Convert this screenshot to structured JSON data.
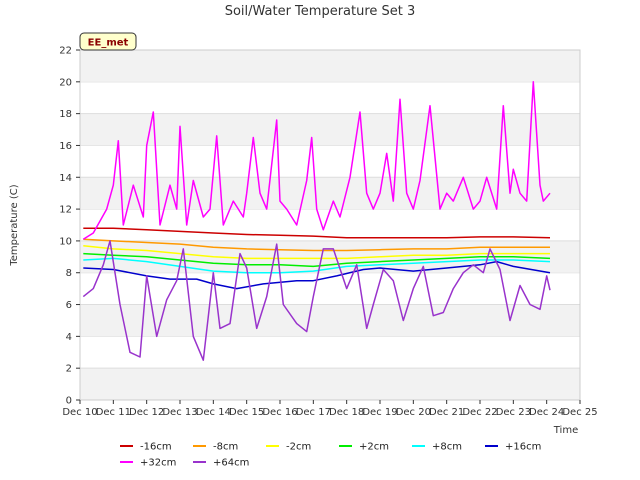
{
  "chart_data": {
    "type": "line",
    "title": "Soil/Water Temperature Set 3",
    "xlabel": "Time",
    "ylabel": "Temperature (C)",
    "ylim": [
      0,
      22
    ],
    "yticks": [
      0,
      2,
      4,
      6,
      8,
      10,
      12,
      14,
      16,
      18,
      20,
      22
    ],
    "xlim": [
      10,
      25
    ],
    "xticks": [
      10,
      11,
      12,
      13,
      14,
      15,
      16,
      17,
      18,
      19,
      20,
      21,
      22,
      23,
      24,
      25
    ],
    "xtick_labels": [
      "Dec 10",
      "Dec 11",
      "Dec 12",
      "Dec 13",
      "Dec 14",
      "Dec 15",
      "Dec 16",
      "Dec 17",
      "Dec 18",
      "Dec 19",
      "Dec 20",
      "Dec 21",
      "Dec 22",
      "Dec 23",
      "Dec 24",
      "Dec 25"
    ],
    "grid": "horizontal bands",
    "legend_position": "bottom",
    "site_badge": "EE_met",
    "series": [
      {
        "name": "-16cm",
        "color": "#cc0000",
        "x": [
          10.1,
          11,
          12,
          13,
          14,
          15,
          16,
          17,
          18,
          19,
          20,
          21,
          22,
          23,
          24.1
        ],
        "y": [
          10.8,
          10.8,
          10.7,
          10.6,
          10.5,
          10.4,
          10.35,
          10.3,
          10.2,
          10.2,
          10.2,
          10.2,
          10.25,
          10.25,
          10.2
        ]
      },
      {
        "name": "-8cm",
        "color": "#ff9900",
        "x": [
          10.1,
          11,
          12,
          13,
          14,
          15,
          16,
          17,
          18,
          19,
          20,
          21,
          22,
          23,
          24.1
        ],
        "y": [
          10.1,
          10.0,
          9.9,
          9.8,
          9.6,
          9.5,
          9.45,
          9.4,
          9.4,
          9.45,
          9.5,
          9.5,
          9.6,
          9.6,
          9.6
        ]
      },
      {
        "name": "-2cm",
        "color": "#ffff00",
        "x": [
          10.1,
          11,
          12,
          13,
          14,
          15,
          16,
          17,
          18,
          19,
          20,
          21,
          22,
          23,
          24.1
        ],
        "y": [
          9.7,
          9.5,
          9.4,
          9.2,
          9.0,
          8.9,
          8.9,
          8.9,
          8.9,
          9.0,
          9.1,
          9.1,
          9.2,
          9.2,
          9.2
        ]
      },
      {
        "name": "+2cm",
        "color": "#00ee00",
        "x": [
          10.1,
          11,
          12,
          13,
          14,
          15,
          16,
          17,
          18,
          19,
          20,
          21,
          22,
          23,
          24.1
        ],
        "y": [
          9.2,
          9.1,
          9.0,
          8.8,
          8.6,
          8.5,
          8.5,
          8.4,
          8.6,
          8.7,
          8.8,
          8.9,
          9.0,
          9.0,
          8.9
        ]
      },
      {
        "name": "+8cm",
        "color": "#00ffff",
        "x": [
          10.1,
          11,
          12,
          13,
          14,
          15,
          16,
          17,
          18,
          19,
          20,
          21,
          22,
          23,
          24.1
        ],
        "y": [
          8.8,
          8.9,
          8.7,
          8.4,
          8.1,
          8.0,
          8.0,
          8.1,
          8.4,
          8.5,
          8.6,
          8.7,
          8.8,
          8.8,
          8.7
        ]
      },
      {
        "name": "+16cm",
        "color": "#0000cc",
        "x": [
          10.1,
          11,
          12,
          12.7,
          13.5,
          14,
          14.7,
          15.5,
          16.5,
          17,
          17.7,
          18.5,
          19,
          20,
          21,
          22,
          22.5,
          23,
          24.1
        ],
        "y": [
          8.3,
          8.2,
          7.8,
          7.6,
          7.6,
          7.3,
          7.0,
          7.3,
          7.5,
          7.5,
          7.8,
          8.2,
          8.3,
          8.1,
          8.3,
          8.5,
          8.7,
          8.4,
          8.0
        ]
      },
      {
        "name": "+32cm",
        "color": "#ff00ff",
        "x": [
          10.1,
          10.4,
          10.8,
          11.0,
          11.15,
          11.3,
          11.6,
          11.9,
          12.0,
          12.2,
          12.4,
          12.7,
          12.9,
          13.0,
          13.2,
          13.4,
          13.7,
          13.9,
          14.1,
          14.3,
          14.6,
          14.9,
          15.0,
          15.2,
          15.4,
          15.6,
          15.9,
          16.0,
          16.2,
          16.5,
          16.8,
          16.95,
          17.1,
          17.3,
          17.6,
          17.8,
          18.1,
          18.4,
          18.6,
          18.8,
          19.0,
          19.2,
          19.4,
          19.6,
          19.8,
          20.0,
          20.2,
          20.5,
          20.8,
          21.0,
          21.2,
          21.5,
          21.8,
          22.0,
          22.2,
          22.5,
          22.7,
          22.9,
          23.0,
          23.2,
          23.4,
          23.6,
          23.8,
          23.9,
          24.1
        ],
        "y": [
          10.1,
          10.5,
          12.0,
          13.5,
          16.3,
          11.0,
          13.5,
          11.5,
          16.0,
          18.1,
          11.0,
          13.5,
          12.0,
          17.2,
          11.0,
          13.8,
          11.5,
          12.0,
          16.6,
          11.0,
          12.5,
          11.5,
          13.0,
          16.5,
          13.0,
          12.0,
          17.6,
          12.5,
          12.0,
          11.0,
          13.8,
          16.5,
          12.0,
          10.7,
          12.5,
          11.5,
          14.0,
          18.1,
          13.0,
          12.0,
          13.0,
          15.5,
          12.5,
          18.9,
          13.0,
          12.0,
          13.8,
          18.5,
          12.0,
          13.0,
          12.5,
          14.0,
          12.0,
          12.5,
          14.0,
          12.0,
          18.5,
          13.0,
          14.5,
          13.0,
          12.5,
          20.0,
          13.5,
          12.5,
          13.0
        ]
      },
      {
        "name": "+64cm",
        "color": "#9933cc",
        "x": [
          10.1,
          10.4,
          10.7,
          10.9,
          11.2,
          11.5,
          11.8,
          12.0,
          12.3,
          12.6,
          12.9,
          13.1,
          13.4,
          13.7,
          14.0,
          14.2,
          14.5,
          14.8,
          15.0,
          15.3,
          15.6,
          15.9,
          16.1,
          16.5,
          16.8,
          17.0,
          17.3,
          17.6,
          18.0,
          18.3,
          18.6,
          18.8,
          19.1,
          19.4,
          19.7,
          20.0,
          20.3,
          20.6,
          20.9,
          21.2,
          21.5,
          21.8,
          22.1,
          22.3,
          22.6,
          22.9,
          23.2,
          23.5,
          23.8,
          24.0,
          24.1
        ],
        "y": [
          6.5,
          7.0,
          8.5,
          10.0,
          6.0,
          3.0,
          2.7,
          7.8,
          4.0,
          6.3,
          7.5,
          9.5,
          4.0,
          2.5,
          8.0,
          4.5,
          4.8,
          9.2,
          8.3,
          4.5,
          6.5,
          9.8,
          6.0,
          4.8,
          4.3,
          6.5,
          9.5,
          9.5,
          7.0,
          8.5,
          4.5,
          6.0,
          8.2,
          7.5,
          5.0,
          7.0,
          8.4,
          5.3,
          5.5,
          7.0,
          8.0,
          8.5,
          8.0,
          9.5,
          8.2,
          5.0,
          7.2,
          6.0,
          5.7,
          7.8,
          6.9
        ]
      }
    ]
  }
}
